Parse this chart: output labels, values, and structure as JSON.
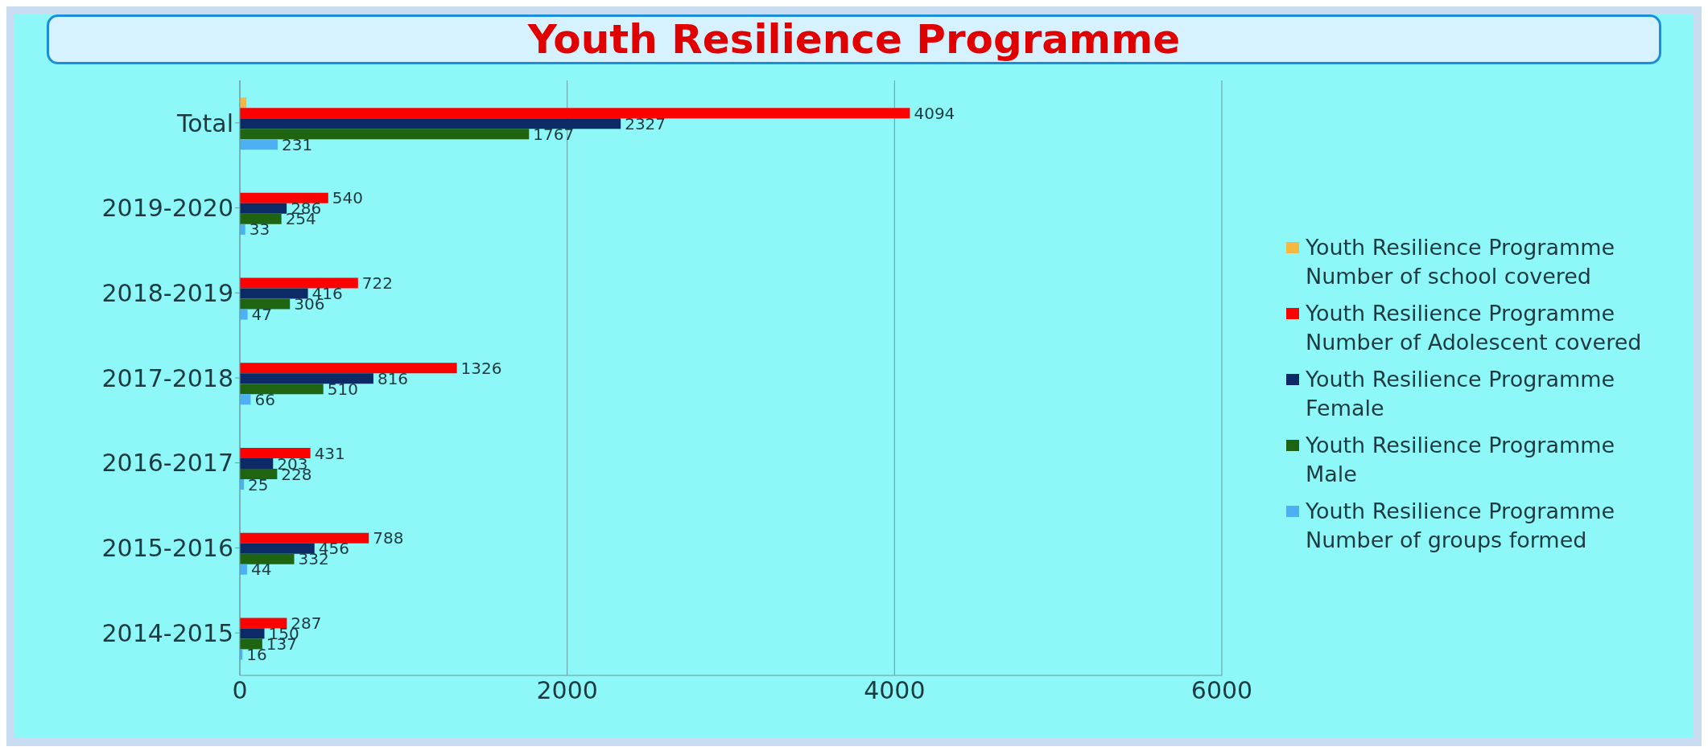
{
  "chart_data": {
    "type": "bar",
    "orientation": "horizontal",
    "title": "Youth Resilience Programme",
    "categories": [
      "Total",
      "2019-2020",
      "2018-2019",
      "2017-2018",
      "2016-2017",
      "2015-2016",
      "2014-2015"
    ],
    "series": [
      {
        "name": "Youth Resilience Programme    Number of school covered",
        "color": "#f5b942",
        "values": [
          40,
          null,
          null,
          null,
          null,
          null,
          null
        ],
        "value_labels": [
          null,
          null,
          null,
          null,
          null,
          null,
          null
        ]
      },
      {
        "name": "Youth Resilience Programme    Number of Adolescent covered",
        "color": "#ff0000",
        "values": [
          4094,
          540,
          722,
          1326,
          431,
          788,
          287
        ],
        "value_labels": [
          "4094",
          "540",
          "722",
          "1326",
          "431",
          "788",
          "287"
        ]
      },
      {
        "name": "Youth Resilience Programme    Female",
        "color": "#0b2a66",
        "values": [
          2327,
          286,
          416,
          816,
          203,
          456,
          150
        ],
        "value_labels": [
          "2327",
          "286",
          "416",
          "816",
          "203",
          "456",
          "150"
        ]
      },
      {
        "name": "Youth Resilience Programme    Male",
        "color": "#1f6410",
        "values": [
          1767,
          254,
          306,
          510,
          228,
          332,
          137
        ],
        "value_labels": [
          "1767",
          "254",
          "306",
          "510",
          "228",
          "332",
          "137"
        ]
      },
      {
        "name": "Youth Resilience Programme    Number of groups formed",
        "color": "#4db0f2",
        "values": [
          231,
          33,
          47,
          66,
          25,
          44,
          16
        ],
        "value_labels": [
          "231",
          "33",
          "47",
          "66",
          "25",
          "44",
          "16"
        ]
      }
    ],
    "xlim": [
      0,
      6000
    ],
    "xticks": [
      0,
      2000,
      4000,
      6000
    ],
    "grid": "x",
    "legend": "right"
  }
}
